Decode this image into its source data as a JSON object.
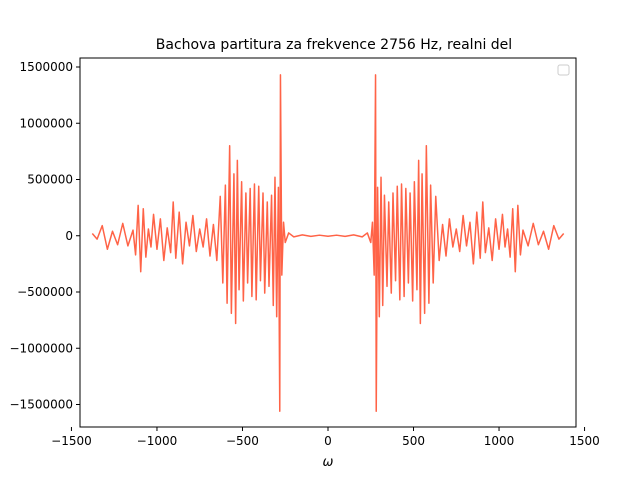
{
  "chart_data": {
    "type": "line",
    "title": "Bachova partitura za frekvence 2756 Hz, realni del",
    "xlabel": "ω",
    "ylabel": "",
    "xlim": [
      -1450,
      1450
    ],
    "ylim": [
      -1700000,
      1580000
    ],
    "xticks": [
      -1500,
      -1000,
      -500,
      0,
      500,
      1000,
      1500
    ],
    "xtick_labels": [
      "−1500",
      "−1000",
      "−500",
      "0",
      "500",
      "1000",
      "1500"
    ],
    "yticks": [
      -1500000,
      -1000000,
      -500000,
      0,
      500000,
      1000000,
      1500000
    ],
    "ytick_labels": [
      "−1500000",
      "−1000000",
      "−500000",
      "0",
      "500000",
      "1000000",
      "1500000"
    ],
    "grid": false,
    "legend": {
      "position": "top-right",
      "entries": []
    },
    "series": [
      {
        "color": "#ff6347",
        "x": [
          -1378,
          -1350,
          -1320,
          -1290,
          -1260,
          -1230,
          -1200,
          -1170,
          -1140,
          -1125,
          -1110,
          -1095,
          -1080,
          -1065,
          -1050,
          -1035,
          -1020,
          -1000,
          -980,
          -960,
          -940,
          -920,
          -905,
          -890,
          -870,
          -850,
          -830,
          -810,
          -790,
          -770,
          -750,
          -730,
          -710,
          -690,
          -670,
          -650,
          -630,
          -615,
          -600,
          -590,
          -575,
          -565,
          -550,
          -540,
          -530,
          -520,
          -505,
          -495,
          -480,
          -470,
          -455,
          -445,
          -430,
          -420,
          -405,
          -395,
          -380,
          -370,
          -355,
          -345,
          -330,
          -320,
          -310,
          -300,
          -290,
          -282,
          -278,
          -270,
          -260,
          -250,
          -230,
          -200,
          -150,
          -100,
          -50,
          0,
          50,
          100,
          150,
          200,
          230,
          250,
          260,
          270,
          278,
          282,
          290,
          300,
          310,
          320,
          330,
          345,
          355,
          370,
          380,
          395,
          405,
          420,
          430,
          445,
          455,
          470,
          480,
          495,
          505,
          520,
          530,
          540,
          550,
          565,
          575,
          590,
          600,
          615,
          630,
          650,
          670,
          690,
          710,
          730,
          750,
          770,
          790,
          810,
          830,
          850,
          870,
          890,
          905,
          920,
          940,
          960,
          980,
          1000,
          1020,
          1035,
          1050,
          1065,
          1080,
          1095,
          1110,
          1125,
          1140,
          1170,
          1200,
          1230,
          1260,
          1290,
          1320,
          1350,
          1378
        ],
        "y": [
          20000,
          -30000,
          90000,
          -120000,
          40000,
          -80000,
          110000,
          -90000,
          50000,
          -170000,
          270000,
          -320000,
          240000,
          -190000,
          60000,
          -100000,
          190000,
          -120000,
          150000,
          -220000,
          70000,
          -150000,
          300000,
          -200000,
          210000,
          -250000,
          120000,
          -90000,
          180000,
          -140000,
          60000,
          -100000,
          150000,
          -180000,
          100000,
          -220000,
          350000,
          -420000,
          450000,
          -600000,
          800000,
          -690000,
          550000,
          -780000,
          670000,
          -480000,
          480000,
          -580000,
          380000,
          -420000,
          420000,
          -540000,
          460000,
          -570000,
          440000,
          -400000,
          380000,
          -510000,
          300000,
          -450000,
          360000,
          -620000,
          520000,
          -720000,
          430000,
          -1560000,
          1430000,
          -350000,
          120000,
          -60000,
          25000,
          -10000,
          8000,
          -6000,
          5000,
          -4000,
          5000,
          -6000,
          8000,
          -10000,
          25000,
          -60000,
          120000,
          -350000,
          1430000,
          -1560000,
          430000,
          -720000,
          520000,
          -620000,
          360000,
          -450000,
          300000,
          -510000,
          380000,
          -400000,
          440000,
          -570000,
          460000,
          -540000,
          420000,
          -420000,
          380000,
          -580000,
          480000,
          -480000,
          670000,
          -780000,
          550000,
          -690000,
          800000,
          -600000,
          450000,
          -420000,
          350000,
          -220000,
          100000,
          -180000,
          150000,
          -100000,
          60000,
          -140000,
          180000,
          -90000,
          120000,
          -250000,
          210000,
          -200000,
          300000,
          -150000,
          70000,
          -220000,
          150000,
          -120000,
          190000,
          -100000,
          60000,
          -190000,
          240000,
          -320000,
          270000,
          -170000,
          50000,
          -90000,
          110000,
          -80000,
          40000,
          -120000,
          90000,
          -30000,
          20000
        ]
      }
    ]
  }
}
